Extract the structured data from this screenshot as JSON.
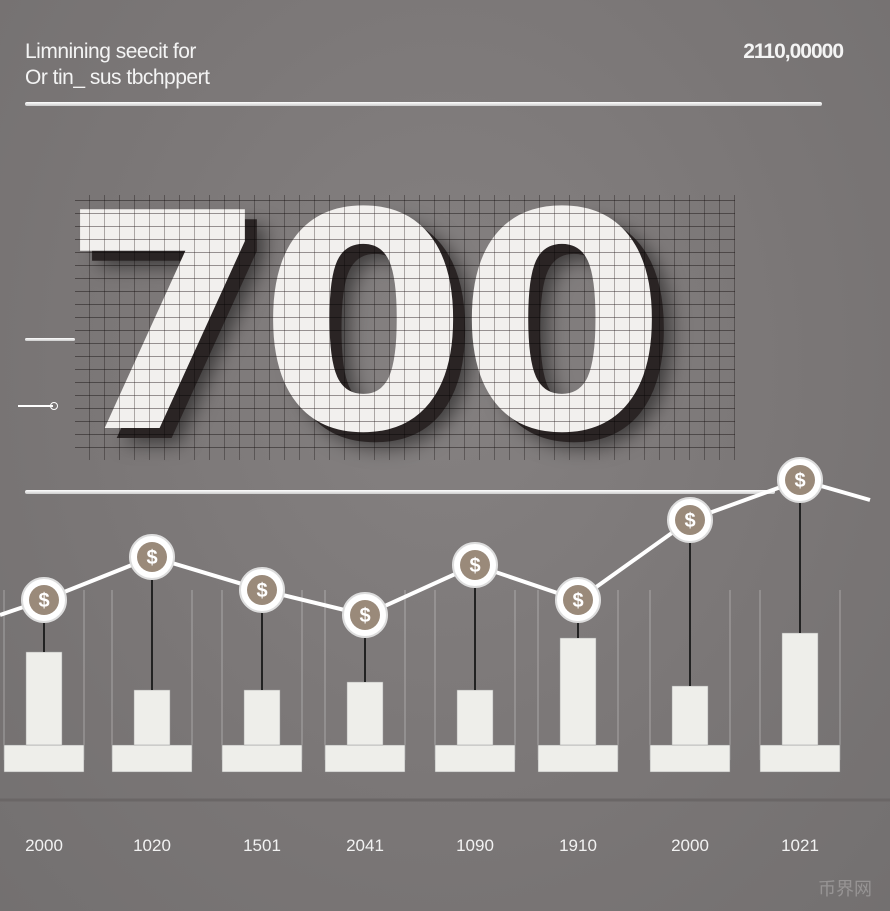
{
  "header": {
    "line1": "Limnining seecit for",
    "line2": "Or tin_ sus tbchppert",
    "total": "2110,00000"
  },
  "hero": {
    "text": "700"
  },
  "watermark": "币界网",
  "chart_data": {
    "type": "line",
    "title": "",
    "categories": [
      "2000",
      "1020",
      "1501",
      "2041",
      "1090",
      "1910",
      "2000",
      "1021"
    ],
    "series": [
      {
        "kind": "line",
        "marker": "$",
        "values": [
          200,
          243,
          210,
          185,
          235,
          200,
          280,
          320
        ]
      },
      {
        "kind": "bar",
        "values": [
          93,
          55,
          55,
          63,
          55,
          107,
          59,
          112
        ]
      }
    ],
    "grid": false,
    "colors": {
      "line": "#ffffff",
      "marker_fill": "#ffffff",
      "marker_text": "#8a7a6a",
      "bar": "#eeeeea"
    }
  }
}
